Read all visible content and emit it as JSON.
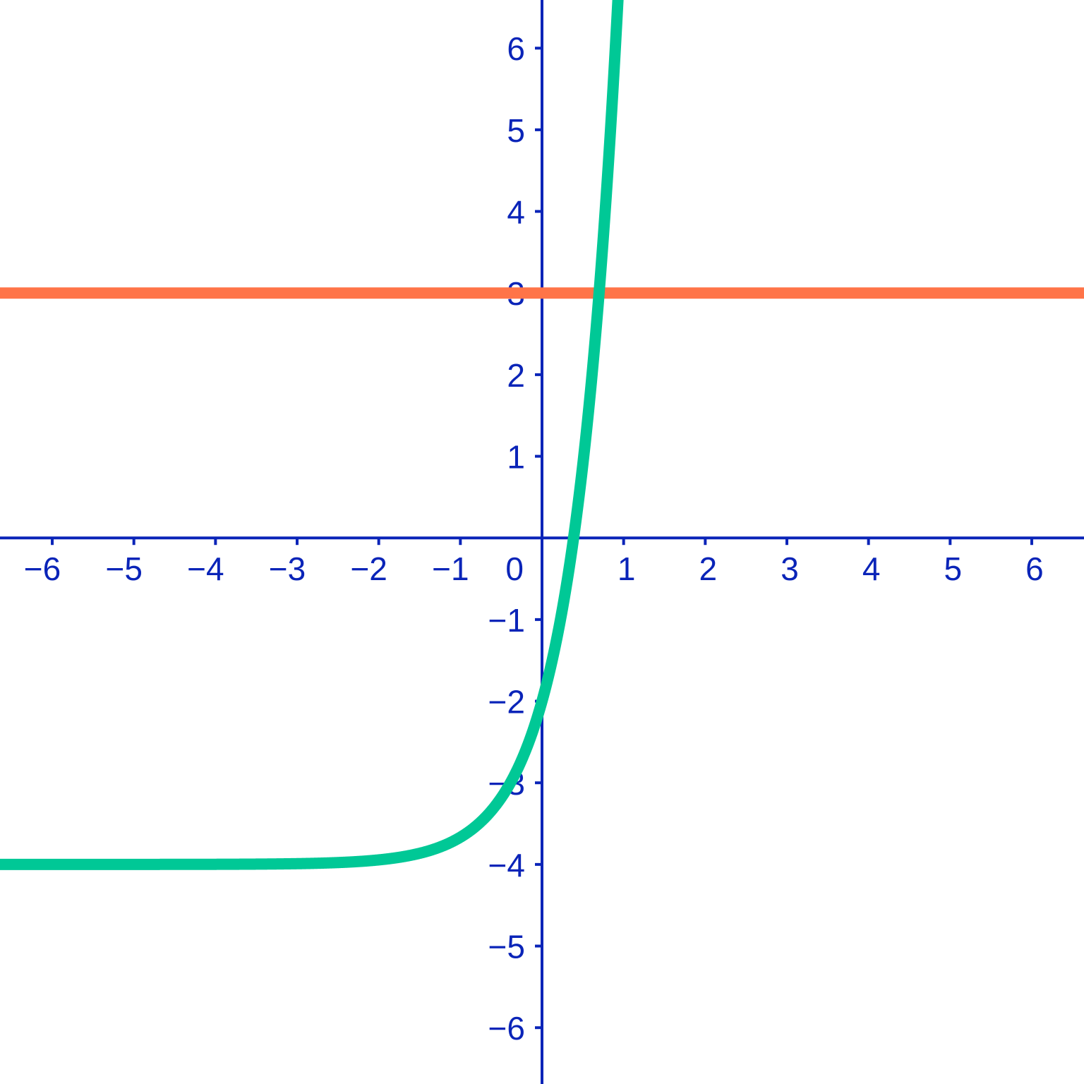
{
  "chart_data": {
    "type": "line",
    "title": "",
    "xlabel": "",
    "ylabel": "",
    "xlim": [
      -6.64,
      6.64
    ],
    "ylim": [
      -6.69,
      6.59
    ],
    "grid": false,
    "x_ticks": [
      -6,
      -5,
      -4,
      -3,
      -2,
      -1,
      1,
      2,
      3,
      4,
      5,
      6
    ],
    "y_ticks": [
      -6,
      -5,
      -4,
      -3,
      -2,
      -1,
      1,
      2,
      3,
      4,
      5,
      6
    ],
    "x_tick_labels": [
      "−6",
      "−5",
      "−4",
      "−3",
      "−2",
      "−1",
      "1",
      "2",
      "3",
      "4",
      "5",
      "6"
    ],
    "y_tick_labels": [
      "−6",
      "−5",
      "−4",
      "−3",
      "−2",
      "−1",
      "1",
      "2",
      "3",
      "4",
      "5",
      "6"
    ],
    "origin_label": "0",
    "series": [
      {
        "function": "y = 2·6^x − 4",
        "color": "#00c896",
        "asymptote_y": -4
      },
      {
        "function": "y = 3",
        "color": "#ff7448"
      }
    ],
    "axis_color": "#0a24b8"
  }
}
